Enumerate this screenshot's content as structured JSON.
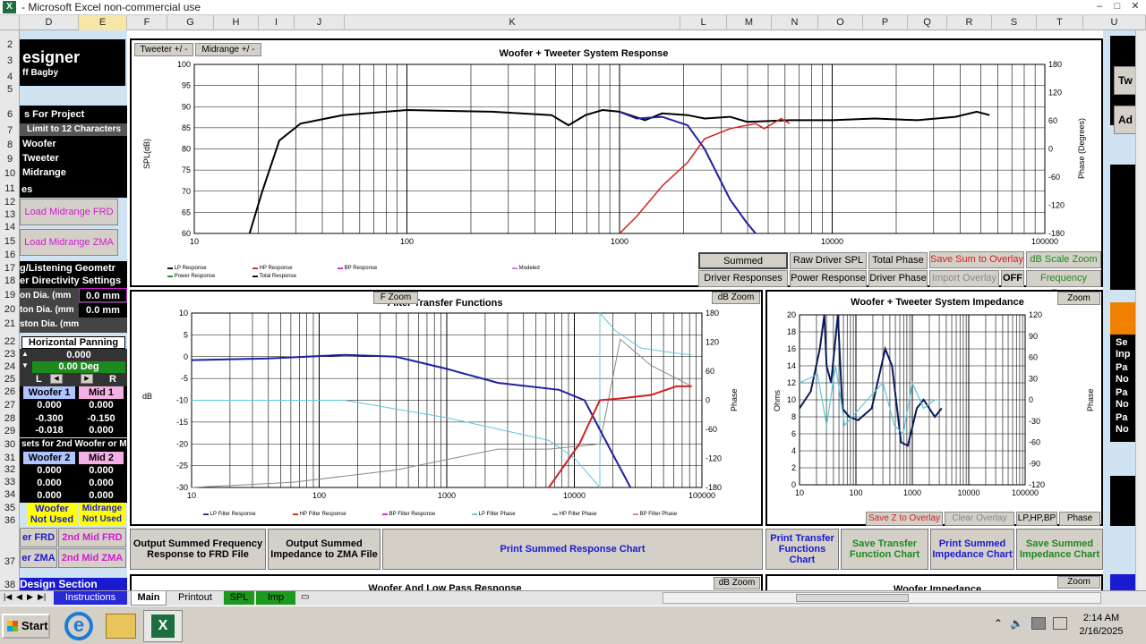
{
  "window": {
    "title": "Microsoft Excel non-commercial use",
    "title_prefix": "-",
    "min": "–",
    "max": "□",
    "close": "✕"
  },
  "columns": [
    "D",
    "E",
    "F",
    "G",
    "H",
    "I",
    "J",
    "K",
    "L",
    "M",
    "N",
    "O",
    "P",
    "Q",
    "R",
    "S",
    "T",
    "U"
  ],
  "rows": [
    "2",
    "3",
    "4",
    "5",
    "6",
    "7",
    "8",
    "9",
    "10",
    "11",
    "12",
    "13",
    "14",
    "15",
    "16",
    "17",
    "18",
    "19",
    "20",
    "21",
    "22",
    "23",
    "24",
    "25",
    "26",
    "27",
    "28",
    "29",
    "30",
    "31",
    "32",
    "33",
    "34",
    "35",
    "36",
    "37",
    "38"
  ],
  "left": {
    "designer": "esigner",
    "author": "ff Bagby",
    "for_project": "s For Project",
    "limit": "Limit to 12 Characters",
    "woofer": "Woofer",
    "tweeter": "Tweeter",
    "midrange": "Midrange",
    "es": "es",
    "load_frd": "Load Midrange FRD",
    "load_zma": "Load Midrange ZMA",
    "geometry": "g/Listening Geometr",
    "directivity": "er Directivity Settings",
    "piston1": "on Dia. (mm",
    "piston1_val": "0.0 mm",
    "piston2": "ton Dia. (mm",
    "piston2_val": "0.0 mm",
    "piston3": "ston Dia. (mm",
    "h_pan": "Horizontal Panning",
    "pan_val": "0.000",
    "pan_deg": "0.00 Deg",
    "pan_l": "L",
    "pan_r": "R",
    "woofer1": "Woofer 1",
    "mid1": "Mid 1",
    "w1": [
      "0.000",
      "-0.300",
      "-0.018"
    ],
    "m1": [
      "0.000",
      "-0.150",
      "0.000"
    ],
    "sets2": "sets for 2nd Woofer or M",
    "woofer2": "Woofer 2",
    "mid2": "Mid 2",
    "w2": [
      "0.000",
      "0.000",
      "0.000"
    ],
    "m2": [
      "0.000",
      "0.000",
      "0.000"
    ],
    "wnu": "Woofer\nNot Used",
    "mnu": "Midrange\nNot Used",
    "wfrd": "er FRD",
    "mfrd": "2nd Mid FRD",
    "wzma": "er ZMA",
    "mzma": "2nd Mid ZMA",
    "design": "Design Section"
  },
  "top_buttons": {
    "tweeter": "Tweeter +/ -",
    "midrange": "Midrange +/ -"
  },
  "top_chart": {
    "title": "Woofer + Tweeter   System Response",
    "ylabel": "SPL(dB)",
    "y2label": "Phase (Degrees)",
    "yticks": [
      "100",
      "95",
      "90",
      "85",
      "80",
      "75",
      "70",
      "65",
      "60"
    ],
    "y2ticks": [
      "180",
      "120",
      "60",
      "0",
      "-60",
      "-120",
      "-180"
    ],
    "xticks": [
      "10",
      "100",
      "1000",
      "10000",
      "100000"
    ],
    "legend": [
      "LP Response",
      "HP Response",
      "BP Response",
      "Modeled",
      "Power Response",
      "Total Response"
    ]
  },
  "resp_buttons": {
    "summed": "Summed Response",
    "raw": "Raw Driver SPL",
    "total_phase": "Total Phase",
    "save_sum": "Save Sum to Overlay",
    "dbscale": "dB Scale Zoom",
    "driver_resp": "Driver Responses",
    "power": "Power Response",
    "driver_phase": "Driver Phase",
    "import": "Import Overlay",
    "off": "OFF",
    "freq_zoom": "Frequency Zoom"
  },
  "filter_chart": {
    "title": "Filter Transfer Functions",
    "fzoom": "F Zoom",
    "dbzoom": "dB Zoom",
    "ylabel": "dB",
    "y2label": "Phase",
    "yticks": [
      "10",
      "5",
      "0",
      "-5",
      "-10",
      "-15",
      "-20",
      "-25",
      "-30"
    ],
    "y2ticks": [
      "180",
      "120",
      "60",
      "0",
      "-60",
      "-120",
      "-180"
    ],
    "xticks": [
      "10",
      "100",
      "1000",
      "10000",
      "100000"
    ],
    "legend": [
      "LP Filter Response",
      "HP Filter Response",
      "BP Filter Response",
      "LP Filter Phase",
      "HP Filter Phase",
      "BP Filter Phase"
    ]
  },
  "imp_chart": {
    "title": "Woofer + Tweeter   System Impedance",
    "zoom": "Zoom",
    "ylabel": "Ohms",
    "y2label": "Phase",
    "yticks": [
      "20",
      "18",
      "16",
      "14",
      "12",
      "10",
      "8",
      "6",
      "4",
      "2",
      "0"
    ],
    "y2ticks": [
      "120",
      "90",
      "60",
      "30",
      "0",
      "-30",
      "-60",
      "-90",
      "-120"
    ],
    "xticks": [
      "10",
      "100",
      "1000",
      "10000",
      "100000"
    ],
    "save_z": "Save Z to Overlay",
    "clear": "Clear Overlay",
    "lphpbp": "LP,HP,BP",
    "phase": "Phase"
  },
  "bottom_buttons": {
    "b1": "Output Summed Frequency Response to FRD File",
    "b2": "Output Summed Impedance to ZMA File",
    "b3": "Print Summed Response Chart",
    "b4": "Print Transfer Functions Chart",
    "b5": "Save Transfer Function Chart",
    "b6": "Print Summed Impedance Chart",
    "b7": "Save Summed Impedance Chart"
  },
  "lower": {
    "woofer_lp": "Woofer  And Low Pass Response",
    "dbzoom": "dB Zoom",
    "woofer_imp": "Woofer  Impedance",
    "zoom": "Zoom"
  },
  "right": {
    "tw": "Tw",
    "ad": "Ad",
    "se": "Se",
    "inp": "Inp",
    "pa": "Pa",
    "no": "No"
  },
  "sheets": [
    "Instructions",
    "Main",
    "Printout",
    "SPL",
    "Imp"
  ],
  "taskbar": {
    "start": "Start",
    "time": "2:14 AM",
    "date": "2/16/2025"
  },
  "colors": {
    "lp": "#1f1f9f",
    "hp": "#d42020",
    "lpphase": "#5cc8d8",
    "hpphase": "#888888"
  }
}
